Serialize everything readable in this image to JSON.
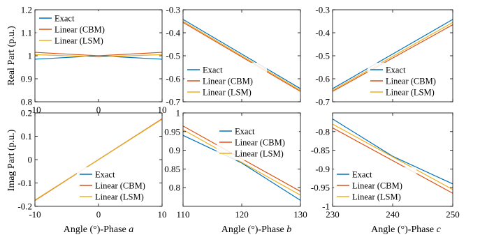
{
  "row_labels": [
    "Real Part (p.u.)",
    "Imag Part (p.u.)"
  ],
  "xlabels": [
    {
      "prefix": "Angle (°)-Phase ",
      "phase": "a"
    },
    {
      "prefix": "Angle (°)-Phase ",
      "phase": "b"
    },
    {
      "prefix": "Angle (°)-Phase ",
      "phase": "c"
    }
  ],
  "legend_entries": [
    "Exact",
    "Linear (CBM)",
    "Linear (LSM)"
  ],
  "colors": {
    "exact": "#0072BD",
    "cbm": "#D95319",
    "lsm": "#EDB120"
  },
  "chart_data": [
    {
      "type": "line",
      "id": "real-a",
      "xlim": [
        -10,
        10
      ],
      "ylim": [
        0.8,
        1.2
      ],
      "xticks": [
        "-10",
        "0",
        "10"
      ],
      "yticks": [
        "0.8",
        "0.9",
        "1",
        "1.1",
        "1.2"
      ],
      "legend": "top-left",
      "series": [
        {
          "name": "Exact",
          "x": [
            -10,
            0,
            10
          ],
          "y": [
            0.985,
            1.0,
            0.985
          ]
        },
        {
          "name": "Linear (CBM)",
          "x": [
            -10,
            0,
            10
          ],
          "y": [
            1.015,
            1.0,
            1.015
          ]
        },
        {
          "name": "Linear (LSM)",
          "x": [
            -10,
            0,
            10
          ],
          "y": [
            1.005,
            0.995,
            1.005
          ]
        }
      ]
    },
    {
      "type": "line",
      "id": "real-b",
      "xlim": [
        110,
        130
      ],
      "ylim": [
        -0.7,
        -0.3
      ],
      "xticks": [],
      "yticks": [
        "-0.7",
        "-0.6",
        "-0.5",
        "-0.4",
        "-0.3"
      ],
      "legend": "bottom-left",
      "series": [
        {
          "name": "Exact",
          "x": [
            110,
            130
          ],
          "y": [
            -0.342,
            -0.643
          ]
        },
        {
          "name": "Linear (CBM)",
          "x": [
            110,
            130
          ],
          "y": [
            -0.355,
            -0.655
          ]
        },
        {
          "name": "Linear (LSM)",
          "x": [
            110,
            130
          ],
          "y": [
            -0.35,
            -0.65
          ]
        }
      ]
    },
    {
      "type": "line",
      "id": "real-c",
      "xlim": [
        230,
        250
      ],
      "ylim": [
        -0.7,
        -0.3
      ],
      "xticks": [],
      "yticks": [
        "-0.7",
        "-0.6",
        "-0.5",
        "-0.4",
        "-0.3"
      ],
      "legend": "bottom-right",
      "series": [
        {
          "name": "Exact",
          "x": [
            230,
            250
          ],
          "y": [
            -0.643,
            -0.342
          ]
        },
        {
          "name": "Linear (CBM)",
          "x": [
            230,
            250
          ],
          "y": [
            -0.655,
            -0.365
          ]
        },
        {
          "name": "Linear (LSM)",
          "x": [
            230,
            250
          ],
          "y": [
            -0.65,
            -0.355
          ]
        }
      ]
    },
    {
      "type": "line",
      "id": "imag-a",
      "xlim": [
        -10,
        10
      ],
      "ylim": [
        -0.2,
        0.2
      ],
      "xticks": [
        "-10",
        "0",
        "10"
      ],
      "yticks": [
        "-0.2",
        "-0.1",
        "0",
        "0.1",
        "0.2"
      ],
      "legend": "bottom-right",
      "series": [
        {
          "name": "Exact",
          "x": [
            -10,
            10
          ],
          "y": [
            -0.174,
            0.174
          ]
        },
        {
          "name": "Linear (CBM)",
          "x": [
            -10,
            10
          ],
          "y": [
            -0.175,
            0.175
          ]
        },
        {
          "name": "Linear (LSM)",
          "x": [
            -10,
            10
          ],
          "y": [
            -0.173,
            0.173
          ]
        }
      ]
    },
    {
      "type": "line",
      "id": "imag-b",
      "xlim": [
        110,
        130
      ],
      "ylim": [
        0.75,
        1.0
      ],
      "xticks": [
        "110",
        "120",
        "130"
      ],
      "yticks": [
        "0.8",
        "0.85",
        "0.9",
        "0.95",
        "1"
      ],
      "legend": "top-right",
      "series": [
        {
          "name": "Exact",
          "x": [
            110,
            120,
            130
          ],
          "y": [
            0.94,
            0.866,
            0.766
          ]
        },
        {
          "name": "Linear (CBM)",
          "x": [
            110,
            130
          ],
          "y": [
            0.965,
            0.79
          ]
        },
        {
          "name": "Linear (LSM)",
          "x": [
            110,
            130
          ],
          "y": [
            0.955,
            0.78
          ]
        }
      ]
    },
    {
      "type": "line",
      "id": "imag-c",
      "xlim": [
        230,
        250
      ],
      "ylim": [
        -1.0,
        -0.75
      ],
      "xticks": [
        "230",
        "240",
        "250"
      ],
      "yticks": [
        "-1",
        "-0.95",
        "-0.9",
        "-0.85",
        "-0.8"
      ],
      "legend": "bottom-left",
      "series": [
        {
          "name": "Exact",
          "x": [
            230,
            240,
            250
          ],
          "y": [
            -0.766,
            -0.866,
            -0.94
          ]
        },
        {
          "name": "Linear (CBM)",
          "x": [
            230,
            250
          ],
          "y": [
            -0.79,
            -0.965
          ]
        },
        {
          "name": "Linear (LSM)",
          "x": [
            230,
            250
          ],
          "y": [
            -0.78,
            -0.955
          ]
        }
      ]
    }
  ]
}
